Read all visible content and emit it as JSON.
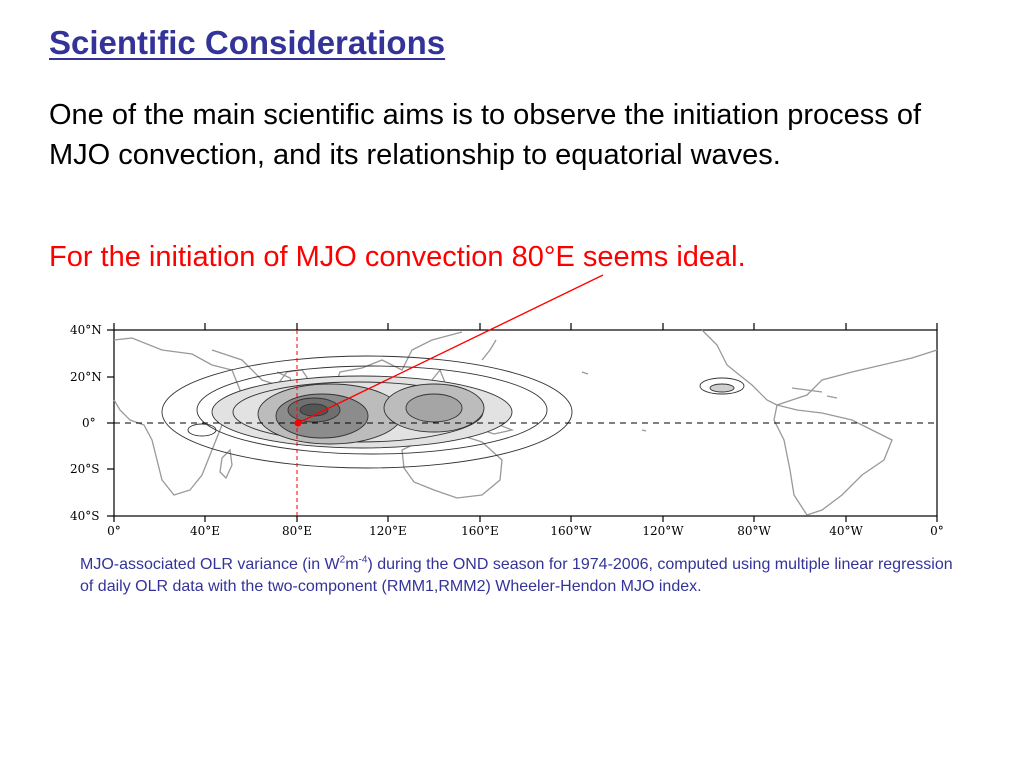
{
  "slide": {
    "title": "Scientific Considerations",
    "paragraph": "One of the main scientific aims is to observe the initiation process of MJO convection, and its relationship to equatorial waves.",
    "highlight": "For the initiation of MJO convection 80°E seems ideal."
  },
  "map": {
    "lat_labels": [
      "40°N",
      "20°N",
      "0°",
      "20°S",
      "40°S"
    ],
    "lon_labels": [
      "0°",
      "40°E",
      "80°E",
      "120°E",
      "160°E",
      "160°W",
      "120°W",
      "80°W",
      "40°W",
      "0°"
    ],
    "highlight_longitude": "80°E",
    "colors": {
      "highlight_line": "#ff0000",
      "coastline": "#999999",
      "contour": "#333333",
      "shade_light": "#e2e2e2",
      "shade_mid": "#bcbcbc",
      "shade_dark": "#8c8c8c"
    }
  },
  "caption": {
    "part1": "MJO-associated OLR variance (in W",
    "sup1": "2",
    "part2": "m",
    "sup2": "-4",
    "part3": ") during the OND season for 1974-2006, computed using multiple linear regression of daily OLR data with the two-component (RMM1,RMM2) Wheeler-Hendon MJO index."
  }
}
